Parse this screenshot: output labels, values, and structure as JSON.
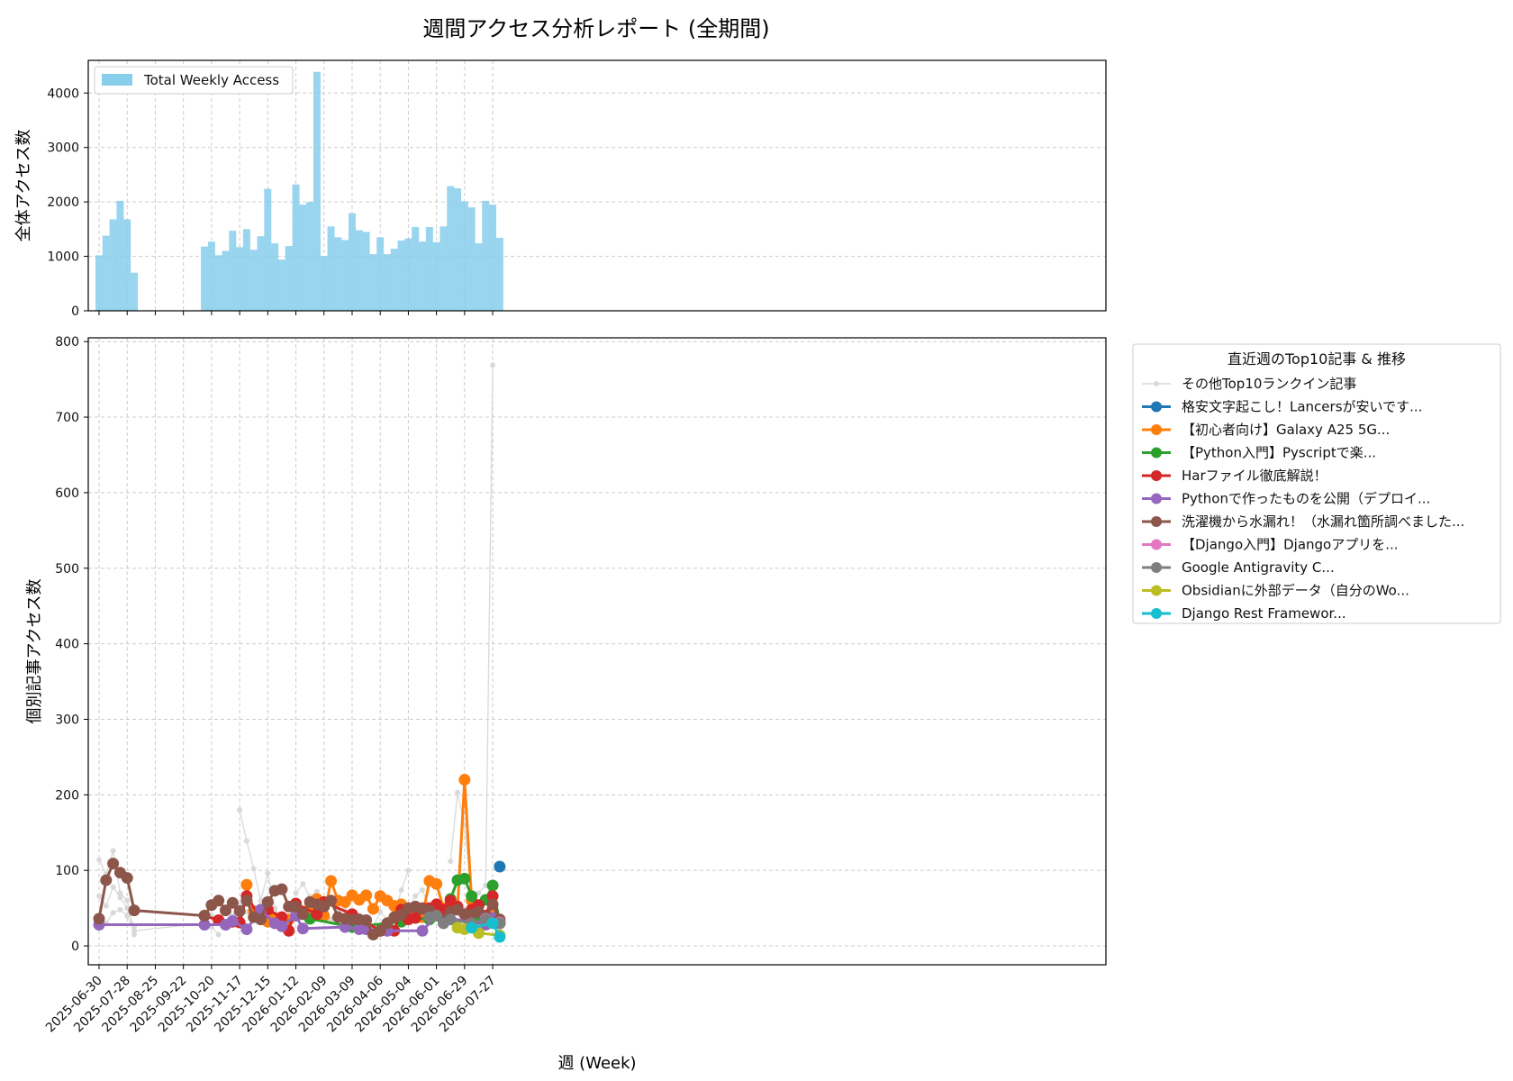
{
  "page_title": "週間アクセス分析レポート (全期間)",
  "chart_data": [
    {
      "type": "bar",
      "ylabel": "全体アクセス数",
      "ylim": [
        0,
        4600
      ],
      "yticks": [
        0,
        1000,
        2000,
        3000,
        4000
      ],
      "grid": true,
      "legend": {
        "placement": "top-left",
        "entries": [
          {
            "name": "Total Weekly Access",
            "color": "#87CEEB"
          }
        ]
      },
      "bar_color": "#87CEEB",
      "x": [
        "2025-06-30",
        "2025-07-07",
        "2025-07-14",
        "2025-07-21",
        "2025-07-28",
        "2025-08-04",
        "2025-10-13",
        "2025-10-20",
        "2025-10-27",
        "2025-11-03",
        "2025-11-10",
        "2025-11-17",
        "2025-11-24",
        "2025-12-01",
        "2025-12-08",
        "2025-12-15",
        "2025-12-22",
        "2025-12-29",
        "2026-01-05",
        "2026-01-12",
        "2026-01-19",
        "2026-01-26",
        "2026-02-02",
        "2026-02-09",
        "2026-02-16",
        "2026-02-23",
        "2026-03-02",
        "2026-03-09",
        "2026-03-16",
        "2026-03-23",
        "2026-03-30",
        "2026-04-06",
        "2026-04-13",
        "2026-04-20",
        "2026-04-27",
        "2026-05-04",
        "2026-05-11",
        "2026-05-18",
        "2026-05-25",
        "2026-06-01",
        "2026-06-08",
        "2026-06-15",
        "2026-06-22",
        "2026-06-29",
        "2026-07-06",
        "2026-07-13",
        "2026-07-20",
        "2026-07-27",
        "2026-08-03"
      ],
      "values": [
        1020,
        1380,
        1680,
        2020,
        1680,
        700,
        1180,
        1270,
        1020,
        1100,
        1470,
        1170,
        1500,
        1120,
        1370,
        2240,
        1240,
        940,
        1190,
        2320,
        1950,
        2000,
        4390,
        1010,
        1550,
        1350,
        1300,
        1790,
        1480,
        1450,
        1040,
        1350,
        1040,
        1140,
        1290,
        1330,
        1540,
        1270,
        1540,
        1260,
        1550,
        2290,
        2250,
        2010,
        1900,
        1240,
        2020,
        1950,
        1340
      ]
    },
    {
      "type": "line",
      "xlabel": "週 (Week)",
      "ylabel": "個別記事アクセス数",
      "ylim": [
        -25,
        805
      ],
      "yticks": [
        0,
        100,
        200,
        300,
        400,
        500,
        600,
        700,
        800
      ],
      "xticks": [
        "2025-06-30",
        "2025-07-28",
        "2025-08-25",
        "2025-09-22",
        "2025-10-20",
        "2025-11-17",
        "2025-12-15",
        "2026-01-12",
        "2026-02-09",
        "2026-03-09",
        "2026-04-06",
        "2026-05-04",
        "2026-06-01",
        "2026-06-29",
        "2026-07-27"
      ],
      "grid": true,
      "legend": {
        "title": "直近週のTop10記事 & 推移",
        "placement": "outside-right"
      },
      "series": [
        {
          "name": "その他Top10ランクイン記事",
          "color": "#d9d9d9",
          "style": "thin",
          "lines": [
            {
              "x": [
                "2025-06-30",
                "2025-07-07",
                "2025-07-14",
                "2025-07-21",
                "2025-07-28",
                "2025-08-04"
              ],
              "y": [
                114,
                95,
                126,
                70,
                60,
                15
              ]
            },
            {
              "x": [
                "2025-06-30",
                "2025-07-07",
                "2025-07-14",
                "2025-07-21",
                "2025-07-28",
                "2025-08-04"
              ],
              "y": [
                66,
                53,
                78,
                64,
                50,
                25
              ]
            },
            {
              "x": [
                "2025-06-30",
                "2025-07-07",
                "2025-07-14",
                "2025-07-21",
                "2025-07-28",
                "2025-08-04",
                "2025-10-13",
                "2025-10-20",
                "2025-10-27"
              ],
              "y": [
                25,
                30,
                44,
                48,
                40,
                20,
                30,
                25,
                15
              ]
            },
            {
              "x": [
                "2025-11-17",
                "2025-11-24",
                "2025-12-01",
                "2025-12-08",
                "2025-12-15",
                "2025-12-22"
              ],
              "y": [
                180,
                139,
                102,
                60,
                96,
                50
              ]
            },
            {
              "x": [
                "2026-01-12",
                "2026-01-19",
                "2026-01-26",
                "2026-02-02"
              ],
              "y": [
                70,
                82,
                65,
                72
              ]
            },
            {
              "x": [
                "2026-04-20",
                "2026-04-27",
                "2026-05-04"
              ],
              "y": [
                40,
                74,
                100
              ]
            },
            {
              "x": [
                "2026-05-04",
                "2026-05-11",
                "2026-05-18",
                "2026-05-25"
              ],
              "y": [
                50,
                66,
                74,
                50
              ]
            },
            {
              "x": [
                "2026-06-15",
                "2026-06-22",
                "2026-06-29",
                "2026-07-06",
                "2026-07-13",
                "2026-07-20",
                "2026-07-27"
              ],
              "y": [
                112,
                203,
                160,
                62,
                70,
                80,
                769
              ]
            },
            {
              "x": [
                "2025-10-13",
                "2025-10-20",
                "2025-10-27",
                "2025-11-03",
                "2025-11-10",
                "2025-11-17",
                "2025-11-24",
                "2025-12-01",
                "2025-12-08",
                "2025-12-15",
                "2025-12-22",
                "2025-12-29",
                "2026-01-05"
              ],
              "y": [
                45,
                40,
                30,
                50,
                40,
                55,
                45,
                40,
                35,
                50,
                45,
                40,
                35
              ]
            },
            {
              "x": [
                "2026-02-09",
                "2026-02-16",
                "2026-02-23",
                "2026-03-02",
                "2026-03-09",
                "2026-03-16",
                "2026-03-23",
                "2026-03-30",
                "2026-04-06",
                "2026-04-13"
              ],
              "y": [
                40,
                35,
                45,
                50,
                35,
                40,
                30,
                25,
                45,
                35
              ]
            }
          ]
        },
        {
          "name": "格安文字起こし！Lancersが安いです...",
          "color": "#1f77b4",
          "x": [
            "2026-08-03"
          ],
          "y": [
            105
          ]
        },
        {
          "name": "【初心者向け】Galaxy A25 5G...",
          "color": "#ff7f0e",
          "x": [
            "2025-11-24",
            "2025-12-01",
            "2025-12-08",
            "2025-12-15",
            "2025-12-22",
            "2025-12-29",
            "2026-01-05",
            "2026-01-12",
            "2026-01-19",
            "2026-01-26",
            "2026-02-02",
            "2026-02-09",
            "2026-02-16",
            "2026-02-23",
            "2026-03-02",
            "2026-03-09",
            "2026-03-16",
            "2026-03-23",
            "2026-03-30",
            "2026-04-06",
            "2026-04-13",
            "2026-04-20",
            "2026-04-27",
            "2026-05-04",
            "2026-05-11",
            "2026-05-18",
            "2026-05-25",
            "2026-06-01",
            "2026-06-08",
            "2026-06-15",
            "2026-06-22",
            "2026-06-29",
            "2026-07-06",
            "2026-07-13",
            "2026-07-20",
            "2026-07-27",
            "2026-08-03"
          ],
          "y": [
            81,
            46,
            40,
            32,
            37,
            37,
            35,
            40,
            45,
            50,
            62,
            40,
            86,
            60,
            58,
            67,
            61,
            67,
            49,
            66,
            60,
            53,
            55,
            47,
            40,
            38,
            86,
            82,
            50,
            45,
            50,
            220,
            60,
            40,
            35,
            40,
            33
          ]
        },
        {
          "name": "【Python入門】Pyscriptで楽...",
          "color": "#2ca02c",
          "x": [
            "2026-01-12",
            "2026-01-26",
            "2026-03-09",
            "2026-04-27",
            "2026-05-04",
            "2026-05-25",
            "2026-06-01",
            "2026-06-08",
            "2026-06-15",
            "2026-06-22",
            "2026-06-29",
            "2026-07-06",
            "2026-07-13",
            "2026-07-20",
            "2026-07-27",
            "2026-08-03"
          ],
          "y": [
            56,
            36,
            25,
            32,
            38,
            35,
            40,
            45,
            62,
            87,
            89,
            66,
            40,
            61,
            80,
            30
          ]
        },
        {
          "name": "Harファイル徹底解説！",
          "color": "#d62728",
          "x": [
            "2025-10-13",
            "2025-10-27",
            "2025-11-10",
            "2025-11-17",
            "2025-11-24",
            "2025-12-08",
            "2025-12-15",
            "2025-12-29",
            "2026-01-05",
            "2026-01-12",
            "2026-02-02",
            "2026-02-09",
            "2026-03-09",
            "2026-04-06",
            "2026-04-20",
            "2026-04-27",
            "2026-05-04",
            "2026-05-11",
            "2026-05-18",
            "2026-05-25",
            "2026-06-01",
            "2026-06-08",
            "2026-06-15",
            "2026-06-22",
            "2026-06-29",
            "2026-07-06",
            "2026-07-13",
            "2026-07-20",
            "2026-07-27",
            "2026-08-03"
          ],
          "y": [
            40,
            34,
            32,
            31,
            66,
            36,
            48,
            38,
            20,
            56,
            42,
            58,
            42,
            20,
            20,
            48,
            35,
            37,
            50,
            50,
            55,
            48,
            60,
            52,
            42,
            48,
            54,
            40,
            66,
            30
          ]
        },
        {
          "name": "Pythonで作ったものを公開（デプロイ...",
          "color": "#9467bd",
          "x": [
            "2025-06-30",
            "2025-10-13",
            "2025-11-03",
            "2025-11-10",
            "2025-11-24",
            "2025-12-08",
            "2025-12-22",
            "2025-12-29",
            "2026-01-12",
            "2026-01-19",
            "2026-03-02",
            "2026-03-16",
            "2026-03-23",
            "2026-04-13",
            "2026-05-18",
            "2026-06-01",
            "2026-07-20",
            "2026-07-27",
            "2026-08-03"
          ],
          "y": [
            28,
            28,
            28,
            33,
            22,
            48,
            30,
            26,
            40,
            23,
            25,
            22,
            22,
            20,
            20,
            40,
            28,
            37,
            30
          ]
        },
        {
          "name": "洗濯機から水漏れ！（水漏れ箇所調べました...",
          "color": "#8c564b",
          "x": [
            "2025-06-30",
            "2025-07-07",
            "2025-07-14",
            "2025-07-21",
            "2025-07-28",
            "2025-08-04",
            "2025-10-13",
            "2025-10-20",
            "2025-10-27",
            "2025-11-03",
            "2025-11-10",
            "2025-11-17",
            "2025-11-24",
            "2025-12-01",
            "2025-12-08",
            "2025-12-15",
            "2025-12-22",
            "2025-12-29",
            "2026-01-05",
            "2026-01-12",
            "2026-01-19",
            "2026-01-26",
            "2026-02-02",
            "2026-02-09",
            "2026-02-16",
            "2026-02-23",
            "2026-03-02",
            "2026-03-09",
            "2026-03-16",
            "2026-03-23",
            "2026-03-30",
            "2026-04-06",
            "2026-04-13",
            "2026-04-20",
            "2026-04-27",
            "2026-05-04",
            "2026-05-11",
            "2026-05-18",
            "2026-05-25",
            "2026-06-01",
            "2026-06-08",
            "2026-06-15",
            "2026-06-22",
            "2026-06-29",
            "2026-07-06",
            "2026-07-13",
            "2026-07-20",
            "2026-07-27",
            "2026-08-03"
          ],
          "y": [
            36,
            87,
            109,
            97,
            90,
            47,
            40,
            54,
            60,
            47,
            57,
            46,
            60,
            38,
            35,
            58,
            73,
            75,
            52,
            52,
            42,
            58,
            55,
            52,
            60,
            38,
            36,
            35,
            35,
            34,
            15,
            20,
            30,
            38,
            41,
            50,
            52,
            49,
            47,
            40,
            35,
            45,
            48,
            42,
            42,
            45,
            38,
            55,
            35
          ]
        },
        {
          "name": "【Django入門】Djangoアプリを...",
          "color": "#e377c2",
          "x": [
            "2026-07-20",
            "2026-08-03"
          ],
          "y": [
            36,
            31
          ]
        },
        {
          "name": "Google Antigravity C...",
          "color": "#7f7f7f",
          "x": [
            "2026-05-25",
            "2026-06-01",
            "2026-06-08",
            "2026-06-15",
            "2026-07-06",
            "2026-07-20",
            "2026-08-03"
          ],
          "y": [
            38,
            40,
            30,
            35,
            30,
            35,
            30
          ]
        },
        {
          "name": "Obsidianに外部データ（自分のWo...",
          "color": "#bcbd22",
          "x": [
            "2026-06-22",
            "2026-06-29",
            "2026-07-13",
            "2026-08-03"
          ],
          "y": [
            24,
            22,
            17,
            14
          ]
        },
        {
          "name": "Django Rest Framewor...",
          "color": "#17becf",
          "x": [
            "2026-07-06",
            "2026-07-27",
            "2026-08-03"
          ],
          "y": [
            24,
            30,
            12
          ]
        }
      ]
    }
  ]
}
